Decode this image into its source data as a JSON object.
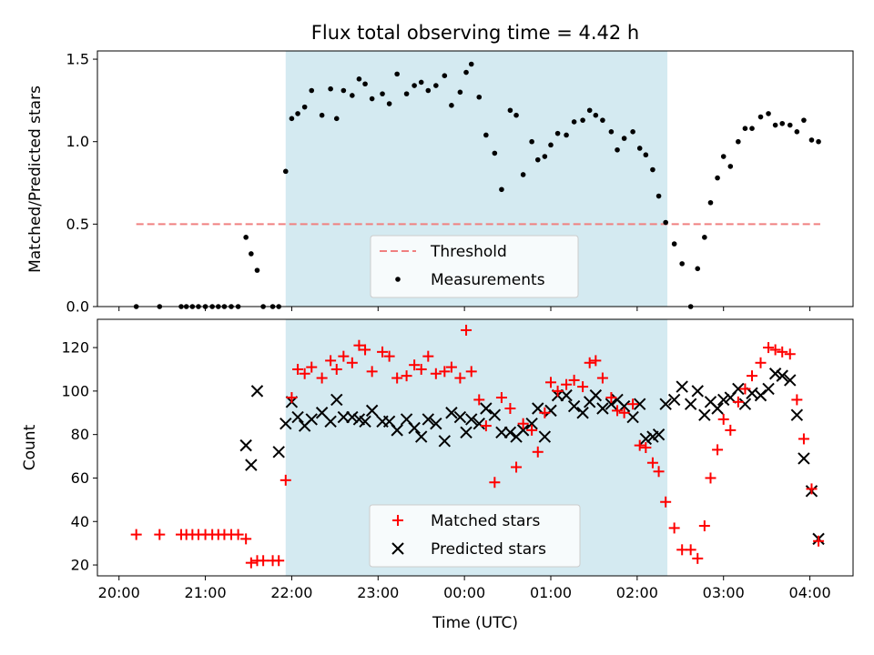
{
  "chart_data": [
    {
      "type": "scatter",
      "title": "Flux total observing time = 4.42 h",
      "xlabel": "",
      "ylabel": "Matched/Predicted stars",
      "ylim": [
        0,
        1.55
      ],
      "yticks": [
        0.0,
        0.5,
        1.0,
        1.5
      ],
      "ytick_labels": [
        "0.0",
        "0.5",
        "1.0",
        "1.5"
      ],
      "xlim_hours": [
        19.75,
        28.5
      ],
      "shaded_span_hours": [
        21.93,
        26.35
      ],
      "shade_color": "#d4eaf1",
      "legend": {
        "placement": "lower-center",
        "entries": [
          {
            "label": "Threshold",
            "color": "#f08080",
            "marker": "dashed-line"
          },
          {
            "label": "Measurements",
            "color": "#000000",
            "marker": "dot"
          }
        ]
      },
      "threshold": {
        "value": 0.5,
        "x_range_hours": [
          20.2,
          28.12
        ],
        "color": "#f08080"
      },
      "series": [
        {
          "name": "Measurements",
          "color": "#000000",
          "x": [
            20.2,
            20.47,
            20.72,
            20.78,
            20.85,
            20.92,
            21.0,
            21.08,
            21.15,
            21.22,
            21.3,
            21.38,
            21.47,
            21.53,
            21.6,
            21.67,
            21.78,
            21.85,
            21.93,
            22.0,
            22.07,
            22.15,
            22.23,
            22.35,
            22.45,
            22.52,
            22.6,
            22.7,
            22.78,
            22.85,
            22.93,
            23.05,
            23.13,
            23.22,
            23.33,
            23.42,
            23.5,
            23.58,
            23.67,
            23.77,
            23.85,
            23.95,
            24.02,
            24.08,
            24.17,
            24.25,
            24.35,
            24.43,
            24.53,
            24.6,
            24.68,
            24.78,
            24.85,
            24.93,
            25.0,
            25.08,
            25.18,
            25.27,
            25.37,
            25.45,
            25.52,
            25.6,
            25.7,
            25.77,
            25.85,
            25.95,
            26.03,
            26.1,
            26.18,
            26.25,
            26.33,
            26.43,
            26.52,
            26.62,
            26.7,
            26.78,
            26.85,
            26.93,
            27.0,
            27.08,
            27.17,
            27.25,
            27.33,
            27.43,
            27.52,
            27.6,
            27.68,
            27.77,
            27.85,
            27.93,
            28.02,
            28.1
          ],
          "y": [
            0.0,
            0.0,
            0.0,
            0.0,
            0.0,
            0.0,
            0.0,
            0.0,
            0.0,
            0.0,
            0.0,
            0.0,
            0.42,
            0.32,
            0.22,
            0.0,
            0.0,
            0.0,
            0.82,
            1.14,
            1.17,
            1.21,
            1.31,
            1.16,
            1.32,
            1.14,
            1.31,
            1.28,
            1.38,
            1.35,
            1.26,
            1.29,
            1.23,
            1.41,
            1.29,
            1.34,
            1.36,
            1.31,
            1.34,
            1.4,
            1.22,
            1.3,
            1.42,
            1.47,
            1.27,
            1.04,
            0.93,
            0.71,
            1.19,
            1.16,
            0.8,
            1.0,
            0.89,
            0.91,
            0.98,
            1.05,
            1.04,
            1.12,
            1.13,
            1.19,
            1.16,
            1.13,
            1.06,
            0.95,
            1.02,
            1.06,
            0.96,
            0.92,
            0.83,
            0.67,
            0.51,
            0.38,
            0.26,
            0.0,
            0.23,
            0.42,
            0.63,
            0.78,
            0.91,
            0.85,
            1.0,
            1.08,
            1.08,
            1.15,
            1.17,
            1.1,
            1.11,
            1.1,
            1.06,
            1.13,
            1.01,
            1.0
          ]
        }
      ]
    },
    {
      "type": "scatter",
      "title": "",
      "xlabel": "Time (UTC)",
      "ylabel": "Count",
      "ylim": [
        15,
        133
      ],
      "yticks": [
        20,
        40,
        60,
        80,
        100,
        120
      ],
      "ytick_labels": [
        "20",
        "40",
        "60",
        "80",
        "100",
        "120"
      ],
      "xlim_hours": [
        19.75,
        28.5
      ],
      "xticks_hours": [
        20,
        21,
        22,
        23,
        24,
        25,
        26,
        27,
        28
      ],
      "xtick_labels": [
        "20:00",
        "21:00",
        "22:00",
        "23:00",
        "00:00",
        "01:00",
        "02:00",
        "03:00",
        "04:00"
      ],
      "shaded_span_hours": [
        21.93,
        26.35
      ],
      "shade_color": "#d4eaf1",
      "legend": {
        "placement": "lower-center",
        "entries": [
          {
            "label": "Matched stars",
            "color": "#ff0000",
            "marker": "plus"
          },
          {
            "label": "Predicted stars",
            "color": "#000000",
            "marker": "x"
          }
        ]
      },
      "series": [
        {
          "name": "Matched stars",
          "color": "#ff0000",
          "marker": "plus",
          "x": [
            20.2,
            20.47,
            20.72,
            20.78,
            20.85,
            20.92,
            21.0,
            21.08,
            21.15,
            21.22,
            21.3,
            21.38,
            21.47,
            21.53,
            21.6,
            21.67,
            21.78,
            21.85,
            21.93,
            22.0,
            22.07,
            22.15,
            22.23,
            22.35,
            22.45,
            22.52,
            22.6,
            22.7,
            22.78,
            22.85,
            22.93,
            23.05,
            23.13,
            23.22,
            23.33,
            23.42,
            23.5,
            23.58,
            23.67,
            23.77,
            23.85,
            23.95,
            24.02,
            24.08,
            24.17,
            24.25,
            24.35,
            24.43,
            24.53,
            24.6,
            24.68,
            24.78,
            24.85,
            24.93,
            25.0,
            25.08,
            25.18,
            25.27,
            25.37,
            25.45,
            25.52,
            25.6,
            25.7,
            25.77,
            25.85,
            25.95,
            26.03,
            26.1,
            26.18,
            26.25,
            26.33,
            26.43,
            26.52,
            26.62,
            26.7,
            26.78,
            26.85,
            26.93,
            27.0,
            27.08,
            27.17,
            27.25,
            27.33,
            27.43,
            27.52,
            27.6,
            27.68,
            27.77,
            27.85,
            27.93,
            28.02,
            28.1
          ],
          "y": [
            34,
            34,
            34,
            34,
            34,
            34,
            34,
            34,
            34,
            34,
            34,
            34,
            32,
            21,
            22,
            22,
            22,
            22,
            59,
            97,
            110,
            108,
            111,
            106,
            114,
            110,
            116,
            113,
            121,
            119,
            109,
            118,
            116,
            106,
            107,
            112,
            110,
            116,
            108,
            109,
            111,
            106,
            128,
            109,
            96,
            84,
            58,
            97,
            92,
            65,
            85,
            82,
            72,
            90,
            104,
            100,
            103,
            105,
            102,
            113,
            114,
            106,
            97,
            91,
            90,
            94,
            75,
            74,
            67,
            63,
            49,
            37,
            27,
            27,
            23,
            38,
            60,
            73,
            87,
            82,
            95,
            101,
            107,
            113,
            120,
            119,
            118,
            117,
            96,
            78,
            55,
            31
          ]
        },
        {
          "name": "Predicted stars",
          "color": "#000000",
          "marker": "x",
          "x": [
            21.47,
            21.53,
            21.6,
            21.85,
            21.93,
            22.0,
            22.07,
            22.15,
            22.23,
            22.35,
            22.45,
            22.52,
            22.6,
            22.7,
            22.78,
            22.85,
            22.93,
            23.05,
            23.13,
            23.22,
            23.33,
            23.42,
            23.5,
            23.58,
            23.67,
            23.77,
            23.85,
            23.95,
            24.02,
            24.08,
            24.17,
            24.25,
            24.35,
            24.43,
            24.53,
            24.6,
            24.68,
            24.78,
            24.85,
            24.93,
            25.0,
            25.08,
            25.18,
            25.27,
            25.37,
            25.45,
            25.52,
            25.6,
            25.7,
            25.77,
            25.85,
            25.95,
            26.03,
            26.1,
            26.18,
            26.25,
            26.33,
            26.43,
            26.52,
            26.62,
            26.7,
            26.78,
            26.85,
            26.93,
            27.0,
            27.08,
            27.17,
            27.25,
            27.33,
            27.43,
            27.52,
            27.6,
            27.68,
            27.77,
            27.85,
            27.93,
            28.02,
            28.1
          ],
          "y": [
            75,
            66,
            100,
            72,
            85,
            95,
            88,
            84,
            87,
            90,
            86,
            96,
            88,
            88,
            87,
            86,
            91,
            86,
            86,
            82,
            87,
            83,
            79,
            87,
            85,
            77,
            90,
            88,
            81,
            87,
            85,
            92,
            89,
            81,
            81,
            79,
            82,
            85,
            92,
            79,
            91,
            98,
            98,
            93,
            90,
            95,
            98,
            92,
            94,
            96,
            93,
            88,
            94,
            78,
            79,
            80,
            94,
            96,
            102,
            94,
            100,
            89,
            95,
            92,
            96,
            97,
            101,
            94,
            99,
            98,
            101,
            108,
            107,
            105,
            89,
            69,
            54,
            32
          ]
        }
      ]
    }
  ]
}
